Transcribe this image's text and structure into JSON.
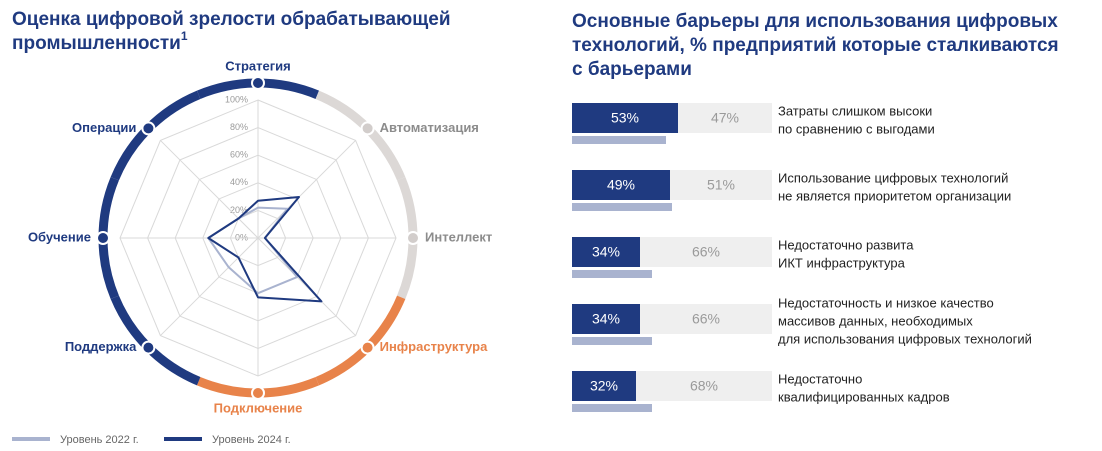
{
  "chart_data": [
    {
      "type": "radar",
      "title": [
        "Оценка цифровой зрелости обрабатывающей",
        "промышленности"
      ],
      "title_note": "1",
      "categories": [
        "Стратегия",
        "Автоматизация",
        "Интеллект",
        "Инфраструктура",
        "Подключение",
        "Поддержка",
        "Обучение",
        "Операции"
      ],
      "category_colors": [
        "#1f3a80",
        "#8c8c8c",
        "#8c8c8c",
        "#e8834a",
        "#e8834a",
        "#1f3a80",
        "#1f3a80",
        "#1f3a80"
      ],
      "ring_colors": [
        "#1f3a80",
        "#dcd8d6",
        "#dcd8d6",
        "#e8834a",
        "#e8834a",
        "#1f3a80",
        "#1f3a80",
        "#1f3a80"
      ],
      "ylim": [
        0,
        100
      ],
      "yticks": [
        {
          "value": 0,
          "label": "0%"
        },
        {
          "value": 20,
          "label": "20%"
        },
        {
          "value": 40,
          "label": "40%"
        },
        {
          "value": 60,
          "label": "60%"
        },
        {
          "value": 80,
          "label": "80%"
        },
        {
          "value": 100,
          "label": "100%"
        }
      ],
      "grid": true,
      "series": [
        {
          "name": "Уровень 2022 г.",
          "color": "#a9b3cf",
          "values": [
            22,
            30,
            5,
            40,
            40,
            30,
            36,
            20
          ]
        },
        {
          "name": "Уровень 2024 г.",
          "color": "#1f3a80",
          "values": [
            27,
            42,
            5,
            65,
            43,
            20,
            36,
            20
          ]
        }
      ]
    },
    {
      "type": "bar",
      "orientation": "horizontal",
      "title": [
        "Основные барьеры для использования цифровых",
        "технологий, % предприятий которые сталкиваются",
        "с барьерами"
      ],
      "categories": [
        [
          "Затраты слишком высоки",
          "по сравнению с выгодами"
        ],
        [
          "Использование цифровых технологий",
          "не является приоритетом организации"
        ],
        [
          "Недостаточно развита",
          "ИКТ инфраструктура"
        ],
        [
          "Недостаточность и низкое качество",
          "массивов данных, необходимых",
          "для использования цифровых технологий"
        ],
        [
          "Недостаточно",
          "квалифицированных кадров"
        ]
      ],
      "xlim": [
        0,
        100
      ],
      "series": [
        {
          "color": "#1f3a80",
          "values": [
            53,
            49,
            34,
            34,
            32
          ],
          "value_labels": [
            "53%",
            "49%",
            "34%",
            "34%",
            "32%"
          ],
          "stacked": true
        },
        {
          "color": "#efefef",
          "values": [
            47,
            51,
            66,
            66,
            68
          ],
          "value_labels": [
            "47%",
            "51%",
            "66%",
            "66%",
            "68%"
          ],
          "stacked": true
        },
        {
          "color": "#a9b3cf",
          "values": [
            47,
            50,
            40,
            40,
            40
          ],
          "stacked": false
        }
      ]
    }
  ]
}
